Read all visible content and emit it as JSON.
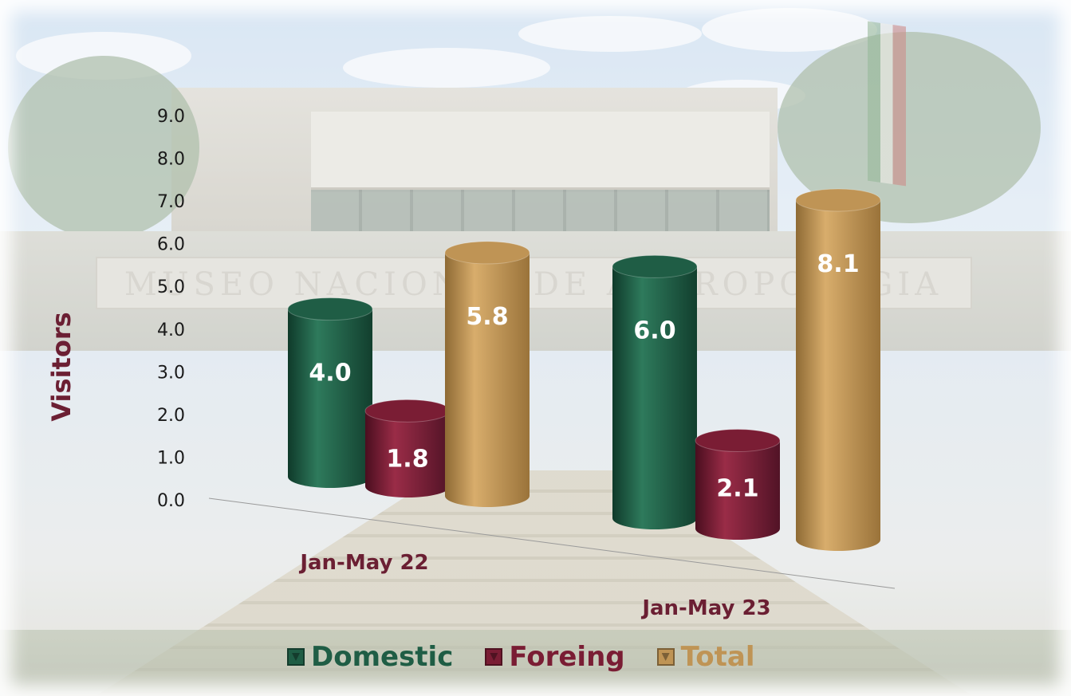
{
  "chart_data": {
    "type": "bar",
    "title": "",
    "xlabel": "",
    "ylabel": "Visitors",
    "ylim": [
      0,
      9
    ],
    "yticks": [
      "0.0",
      "1.0",
      "2.0",
      "3.0",
      "4.0",
      "5.0",
      "6.0",
      "7.0",
      "8.0",
      "9.0"
    ],
    "categories": [
      "Jan-May 22",
      "Jan-May 23"
    ],
    "series": [
      {
        "name": "Domestic",
        "color": "#1f5d45",
        "values": [
          4.0,
          6.0
        ],
        "labels": [
          "4.0",
          "6.0"
        ]
      },
      {
        "name": "Foreing",
        "color": "#7a1d34",
        "values": [
          1.8,
          2.1
        ],
        "labels": [
          "1.8",
          "2.1"
        ]
      },
      {
        "name": "Total",
        "color": "#bf9455",
        "values": [
          5.8,
          8.1
        ],
        "labels": [
          "5.8",
          "8.1"
        ]
      }
    ],
    "legend_position": "bottom",
    "grid": false,
    "style": "3d-cylinder"
  },
  "background": {
    "sign_text": "MUSEO NACIONAL DE ANTROPOLOGIA"
  }
}
